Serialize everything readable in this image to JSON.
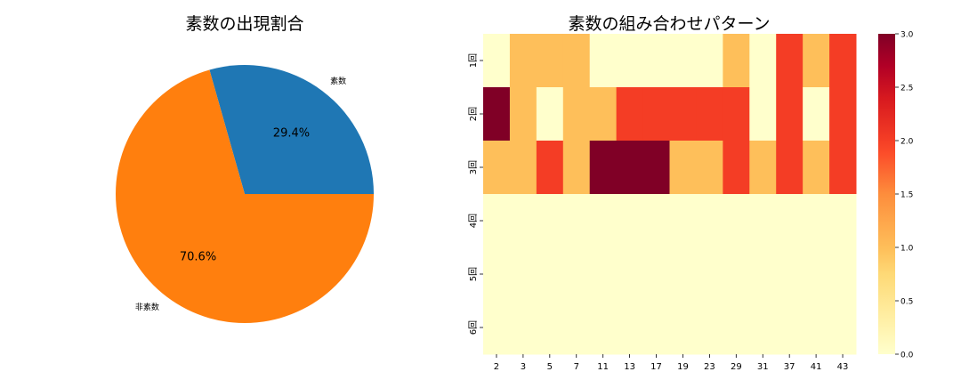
{
  "chart_data": [
    {
      "type": "pie",
      "title": "素数の出現割合",
      "labels": [
        "素数",
        "非素数"
      ],
      "values": [
        29.4,
        70.6
      ],
      "autopct": [
        "29.4%",
        "70.6%"
      ],
      "colors": [
        "#1f77b4",
        "#ff7f0e"
      ],
      "start_angle": 0,
      "direction": "counterclockwise"
    },
    {
      "type": "heatmap",
      "title": "素数の組み合わせパターン",
      "x_ticks": [
        "2",
        "3",
        "5",
        "7",
        "11",
        "13",
        "17",
        "19",
        "23",
        "29",
        "31",
        "37",
        "41",
        "43"
      ],
      "y_ticks": [
        "1回",
        "2回",
        "3回",
        "4回",
        "5回",
        "6回"
      ],
      "values": [
        [
          0,
          1,
          1,
          1,
          0,
          0,
          0,
          0,
          0,
          1,
          0,
          2,
          1,
          2
        ],
        [
          3,
          1,
          0,
          1,
          1,
          2,
          2,
          2,
          2,
          2,
          0,
          2,
          0,
          2
        ],
        [
          1,
          1,
          2,
          1,
          3,
          3,
          3,
          1,
          1,
          2,
          1,
          2,
          1,
          2
        ],
        [
          0,
          0,
          0,
          0,
          0,
          0,
          0,
          0,
          0,
          0,
          0,
          0,
          0,
          0
        ],
        [
          0,
          0,
          0,
          0,
          0,
          0,
          0,
          0,
          0,
          0,
          0,
          0,
          0,
          0
        ],
        [
          0,
          0,
          0,
          0,
          0,
          0,
          0,
          0,
          0,
          0,
          0,
          0,
          0,
          0
        ]
      ],
      "colormap": "YlOrRd",
      "color_stops": {
        "0": "#ffffcc",
        "1": "#febf5a",
        "2": "#f43d25",
        "3": "#800026"
      },
      "vmin": 0,
      "vmax": 3,
      "colorbar_ticks": [
        "0.0",
        "0.5",
        "1.0",
        "1.5",
        "2.0",
        "2.5",
        "3.0"
      ]
    }
  ]
}
